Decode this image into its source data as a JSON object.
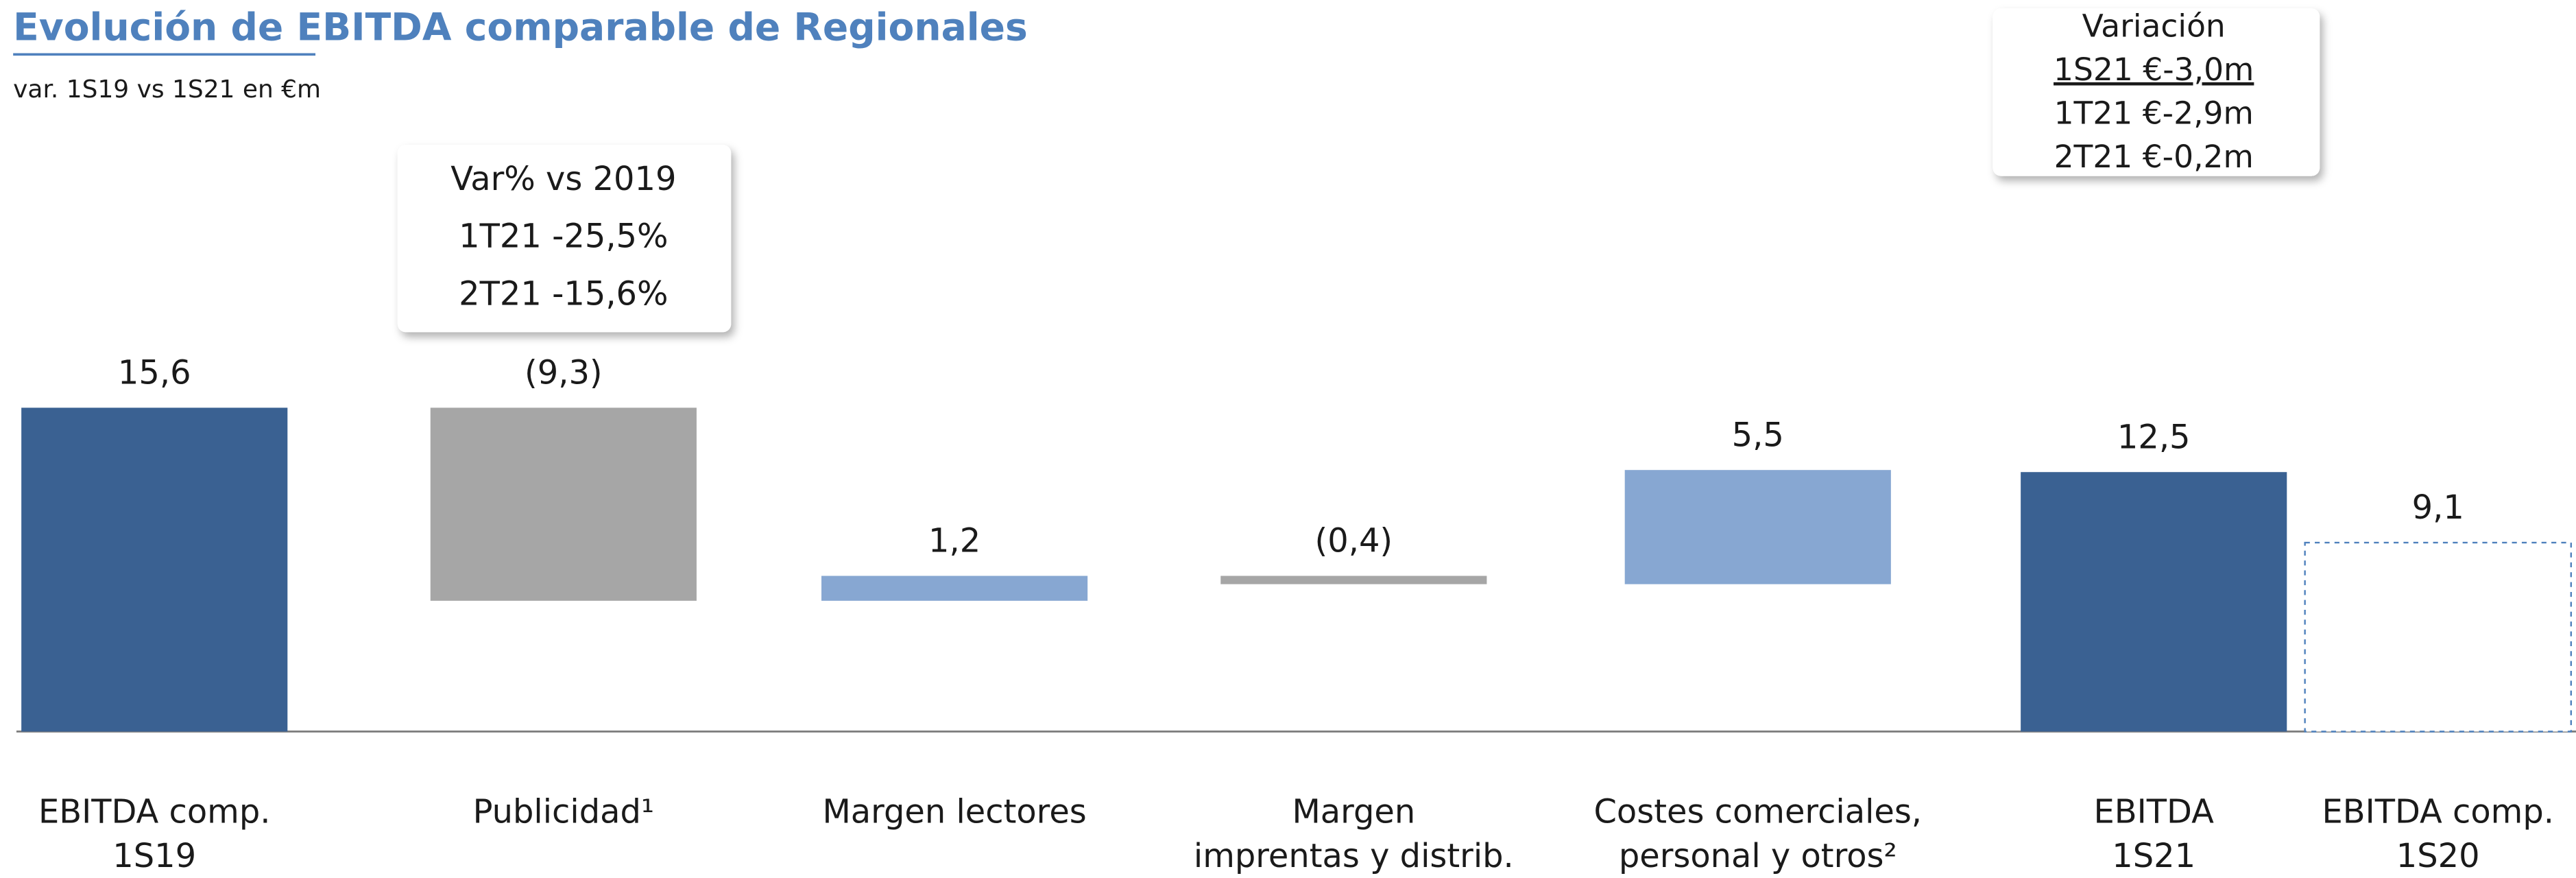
{
  "chart_data": {
    "type": "waterfall",
    "title": "Evolución de EBITDA comparable de Regionales",
    "subtitle": "var. 1S19 vs 1S21 en €m",
    "categories": [
      [
        "EBITDA comp.",
        "1S19"
      ],
      [
        "Publicidad¹"
      ],
      [
        "Margen lectores"
      ],
      [
        "Margen",
        "imprentas y distrib."
      ],
      [
        "Costes comerciales,",
        "personal y otros²"
      ],
      [
        "EBITDA",
        "1S21"
      ],
      [
        "EBITDA comp.",
        "1S20"
      ]
    ],
    "values": [
      15.6,
      -9.3,
      1.2,
      -0.4,
      5.5,
      12.5,
      9.1
    ],
    "value_labels": [
      "15,6",
      "(9,3)",
      "1,2",
      "(0,4)",
      "5,5",
      "12,5",
      "9,1"
    ],
    "measures": [
      "total",
      "relative",
      "relative",
      "relative",
      "relative",
      "total",
      "total"
    ],
    "colors": [
      "#3a6192",
      "#a6a6a6",
      "#87a7d2",
      "#a6a6a6",
      "#87a7d2",
      "#3a6192",
      "#ffffff"
    ],
    "bar_styles": [
      "solid",
      "solid",
      "solid",
      "solid",
      "solid",
      "solid",
      "dashed"
    ],
    "annotations": [
      {
        "lines": [
          "Var% vs 2019",
          "1T21 -25,5%",
          "2T21 -15,6%"
        ]
      },
      {
        "lines": [
          "Variación",
          "1S21 €-3,0m",
          "1T21 €-2,9m",
          "2T21 €-0,2m"
        ]
      }
    ]
  }
}
